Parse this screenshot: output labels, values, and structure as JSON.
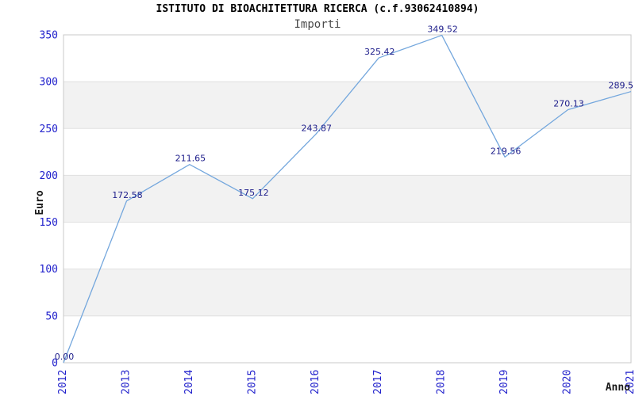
{
  "chart_data": {
    "type": "line",
    "title": "ISTITUTO DI BIOACHITETTURA RICERCA (c.f.93062410894)",
    "subtitle": "Importi",
    "xlabel": "Anno",
    "ylabel": "Euro",
    "categories": [
      "2012",
      "2013",
      "2014",
      "2015",
      "2016",
      "2017",
      "2018",
      "2019",
      "2020",
      "2021"
    ],
    "values": [
      0.0,
      172.58,
      211.65,
      175.12,
      243.87,
      325.42,
      349.52,
      219.56,
      270.13,
      289.5
    ],
    "point_labels": [
      "0.00",
      "172.58",
      "211.65",
      "175.12",
      "243.87",
      "325.42",
      "349.52",
      "219.56",
      "270.13",
      "289.5"
    ],
    "ylim": [
      0,
      350
    ],
    "yticks": [
      0,
      50,
      100,
      150,
      200,
      250,
      300,
      350
    ],
    "grid": "horizontal-bands",
    "legend": "none",
    "colors": {
      "line": "#74a7dd",
      "axis_tick_text": "#2222cc",
      "point_label_text": "#20208c",
      "band_fill": "#f2f2f2",
      "plot_border": "#c8c8c8",
      "grid_line": "#e0e0e0",
      "title_text": "#000000",
      "subtitle_text": "#4a4a4a",
      "axis_title_text": "#1a1a1a",
      "background": "#ffffff"
    }
  }
}
